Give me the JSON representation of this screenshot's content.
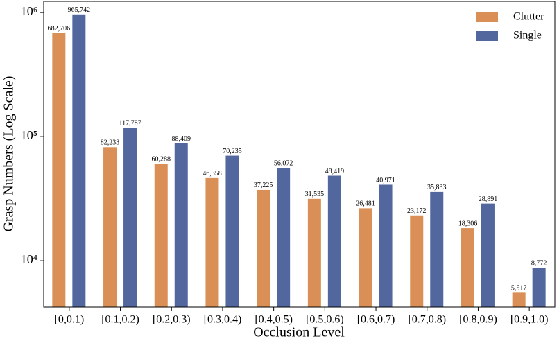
{
  "chart_data": {
    "type": "bar",
    "xlabel": "Occlusion Level",
    "ylabel": "Grasp Numbers (Log Scale)",
    "log_scale": true,
    "legend": "upper right",
    "categories": [
      "[0,0.1)",
      "[0.1,0.2)",
      "[0.2,0.3)",
      "[0.3,0.4)",
      "[0.4,0.5)",
      "[0.5,0.6)",
      "[0.6,0.7)",
      "[0.7,0.8)",
      "[0.8,0.9)",
      "[0.9,1.0)"
    ],
    "series": [
      {
        "name": "Clutter",
        "color": "#d98f56",
        "values": [
          682706,
          82233,
          60288,
          46358,
          37225,
          31535,
          26481,
          23172,
          18306,
          5517
        ],
        "value_labels": [
          "682,706",
          "82,233",
          "60,288",
          "46,358",
          "37,225",
          "31,535",
          "26,481",
          "23,172",
          "18,306",
          "5,517"
        ]
      },
      {
        "name": "Single",
        "color": "#52679e",
        "values": [
          965742,
          117787,
          88409,
          70235,
          56072,
          48419,
          40971,
          35833,
          28891,
          8772
        ],
        "value_labels": [
          "965,742",
          "117,787",
          "88,409",
          "70,235",
          "56,072",
          "48,419",
          "40,971",
          "35,833",
          "28,891",
          "8,772"
        ]
      }
    ],
    "ylim": [
      4230,
      1230000
    ],
    "yticks": [
      {
        "value": 10000,
        "label": "10⁴"
      },
      {
        "value": 100000,
        "label": "10⁵"
      },
      {
        "value": 1000000,
        "label": "10⁶"
      }
    ]
  }
}
